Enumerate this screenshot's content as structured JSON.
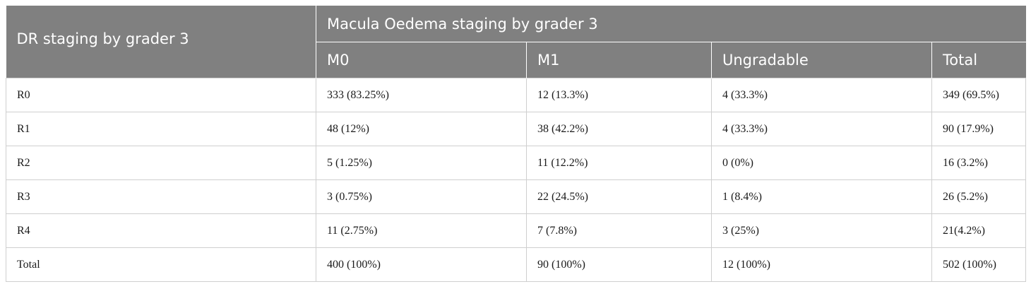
{
  "table": {
    "row_header_label": "DR staging by grader 3",
    "group_header_label": "Macula Oedema staging by grader 3",
    "column_headers": [
      "M0",
      "M1",
      "Ungradable",
      "Total"
    ],
    "rows": [
      {
        "label": "R0",
        "cells": [
          "333 (83.25%)",
          "12 (13.3%)",
          "4 (33.3%)",
          "349 (69.5%)"
        ]
      },
      {
        "label": "R1",
        "cells": [
          "48 (12%)",
          "38 (42.2%)",
          "4 (33.3%)",
          "90 (17.9%)"
        ]
      },
      {
        "label": "R2",
        "cells": [
          "5 (1.25%)",
          "11 (12.2%)",
          "0 (0%)",
          "16 (3.2%)"
        ]
      },
      {
        "label": "R3",
        "cells": [
          "3 (0.75%)",
          "22 (24.5%)",
          "1 (8.4%)",
          "26 (5.2%)"
        ]
      },
      {
        "label": "R4",
        "cells": [
          "11 (2.75%)",
          "7 (7.8%)",
          "3 (25%)",
          "21(4.2%)"
        ]
      },
      {
        "label": "Total",
        "cells": [
          "400 (100%)",
          "90 (100%)",
          "12 (100%)",
          "502 (100%)"
        ]
      }
    ]
  }
}
